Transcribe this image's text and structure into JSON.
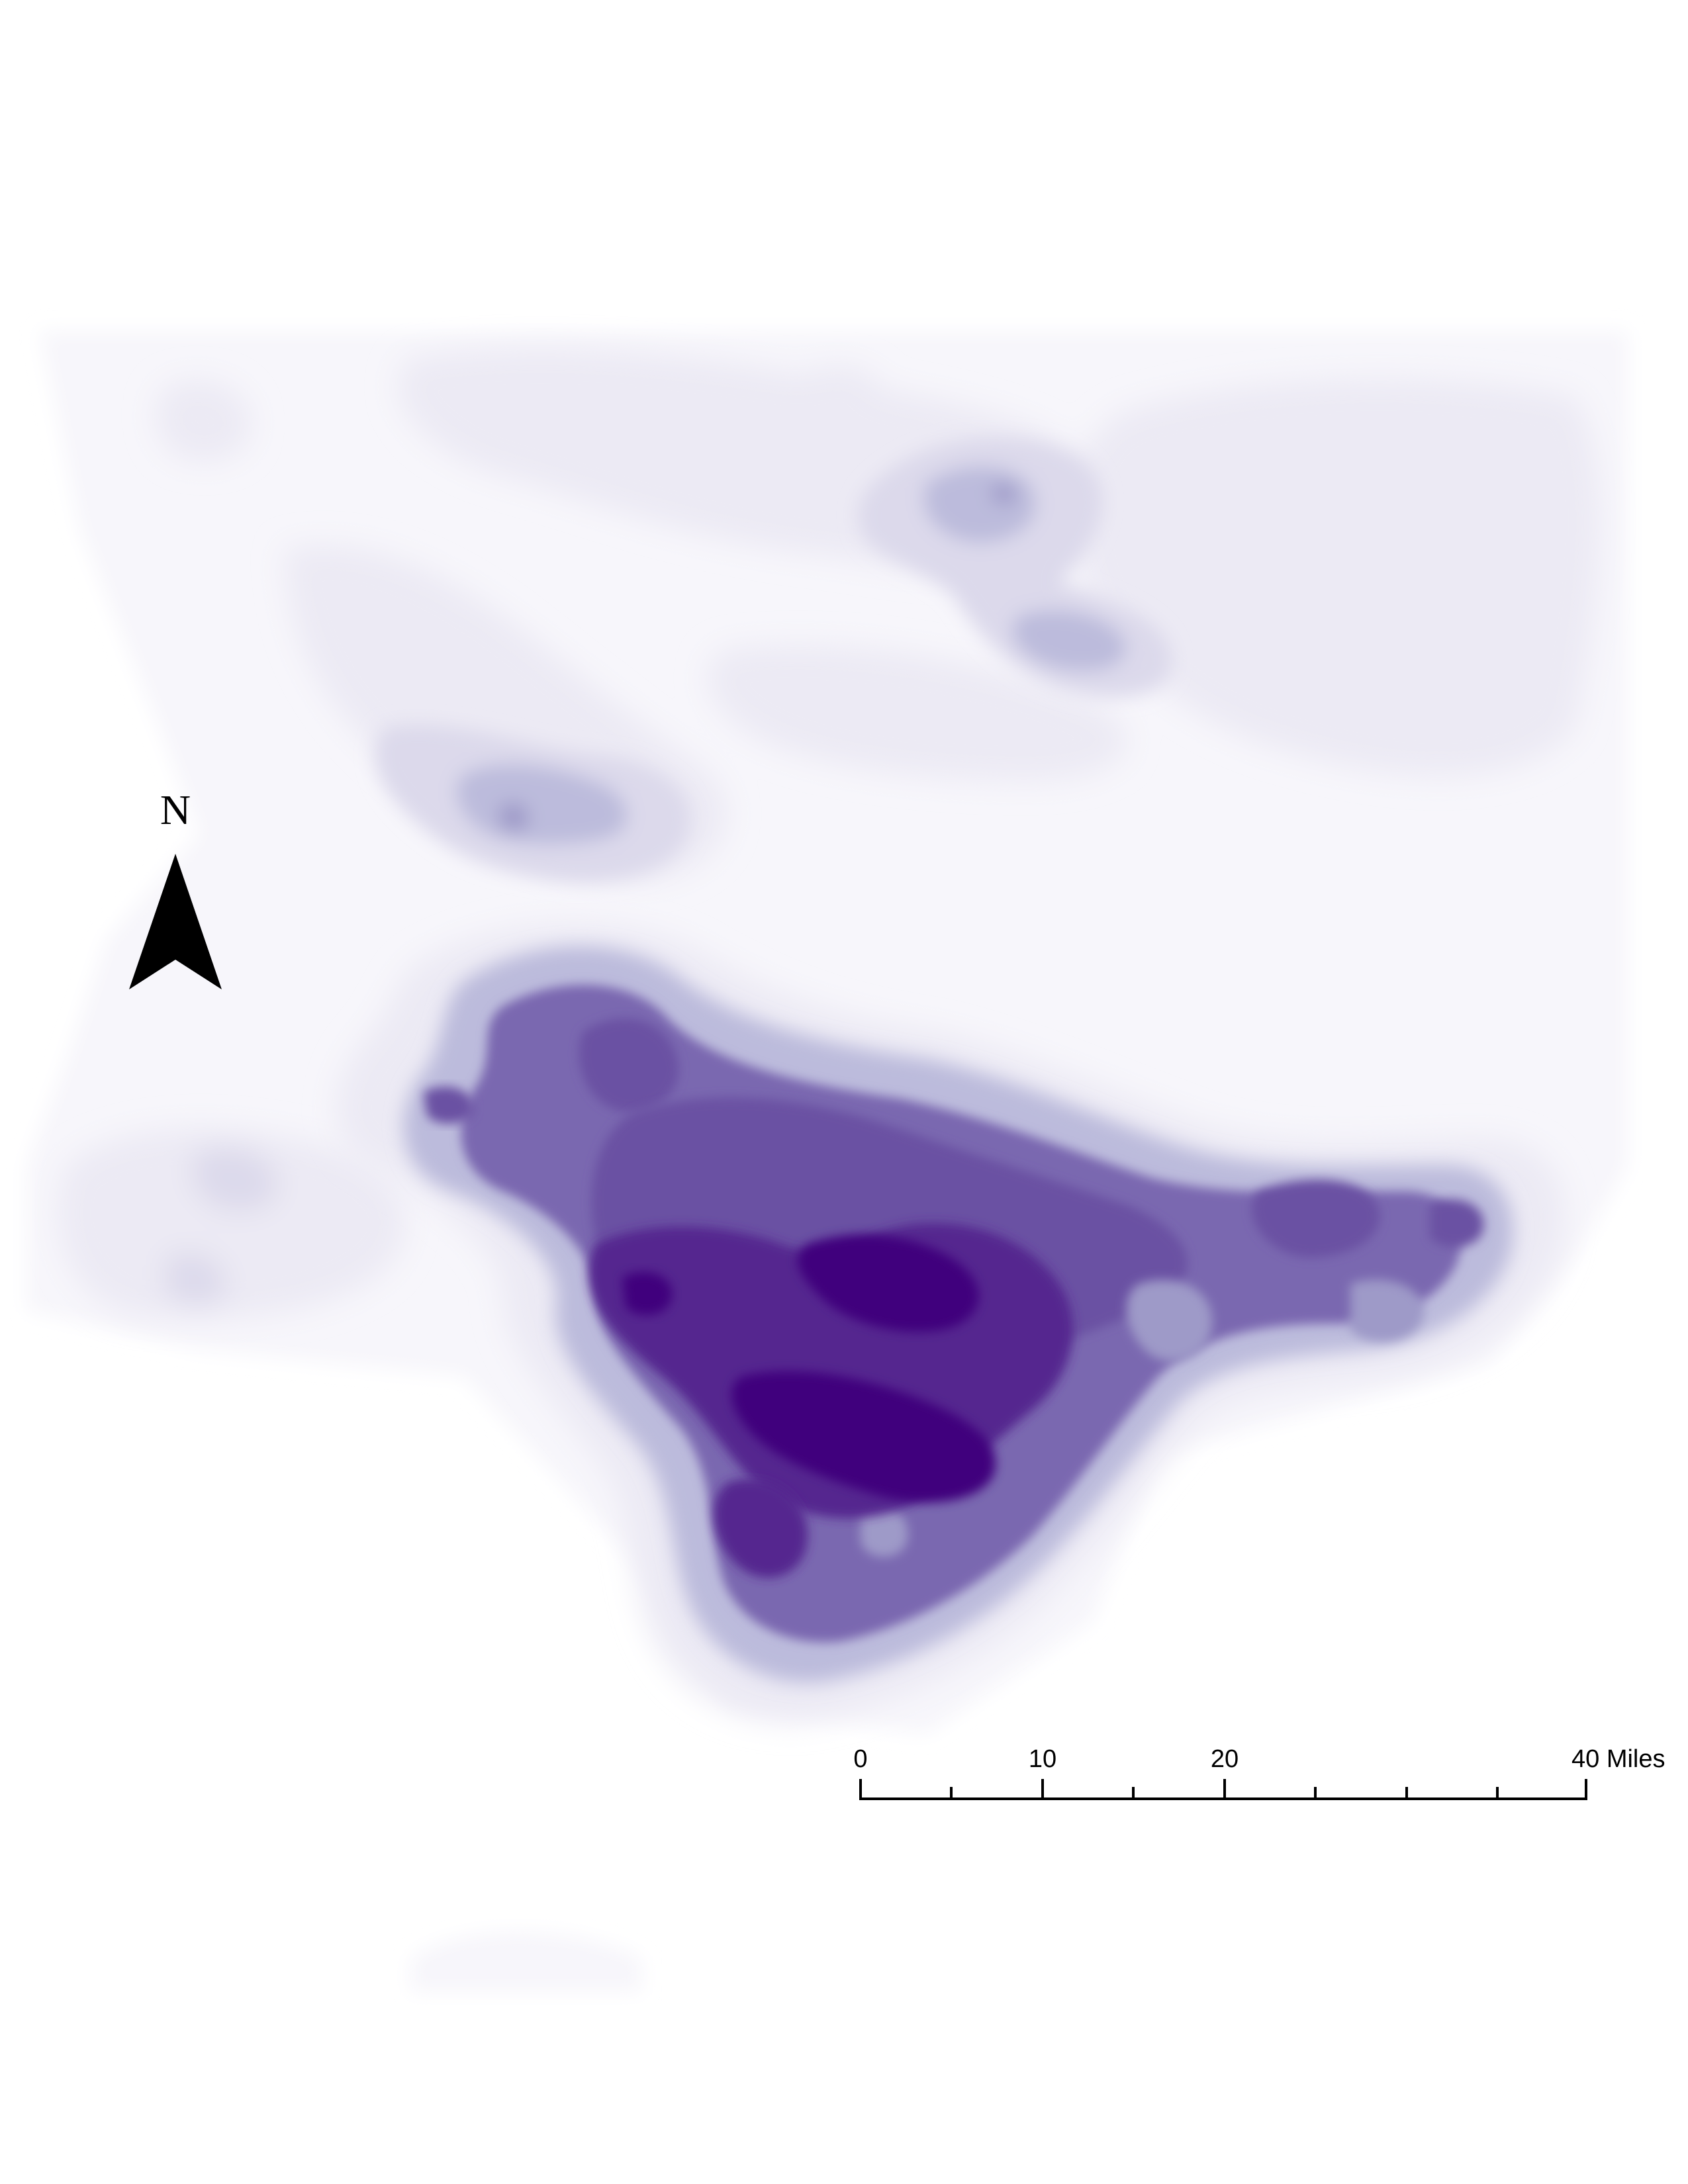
{
  "north_arrow": {
    "letter": "N",
    "icon": "north-arrow-icon",
    "color": "#000000"
  },
  "scale_bar": {
    "labels": [
      "0",
      "10",
      "20",
      "40 Miles"
    ],
    "unit": "Miles",
    "max": 40,
    "color": "#000000"
  },
  "density_ramp": [
    "#f7f6fb",
    "#eceaf4",
    "#dcd9eb",
    "#bcbbdc",
    "#9e9ac8",
    "#7a68b0",
    "#6a51a3",
    "#54278f",
    "#3f007d"
  ]
}
